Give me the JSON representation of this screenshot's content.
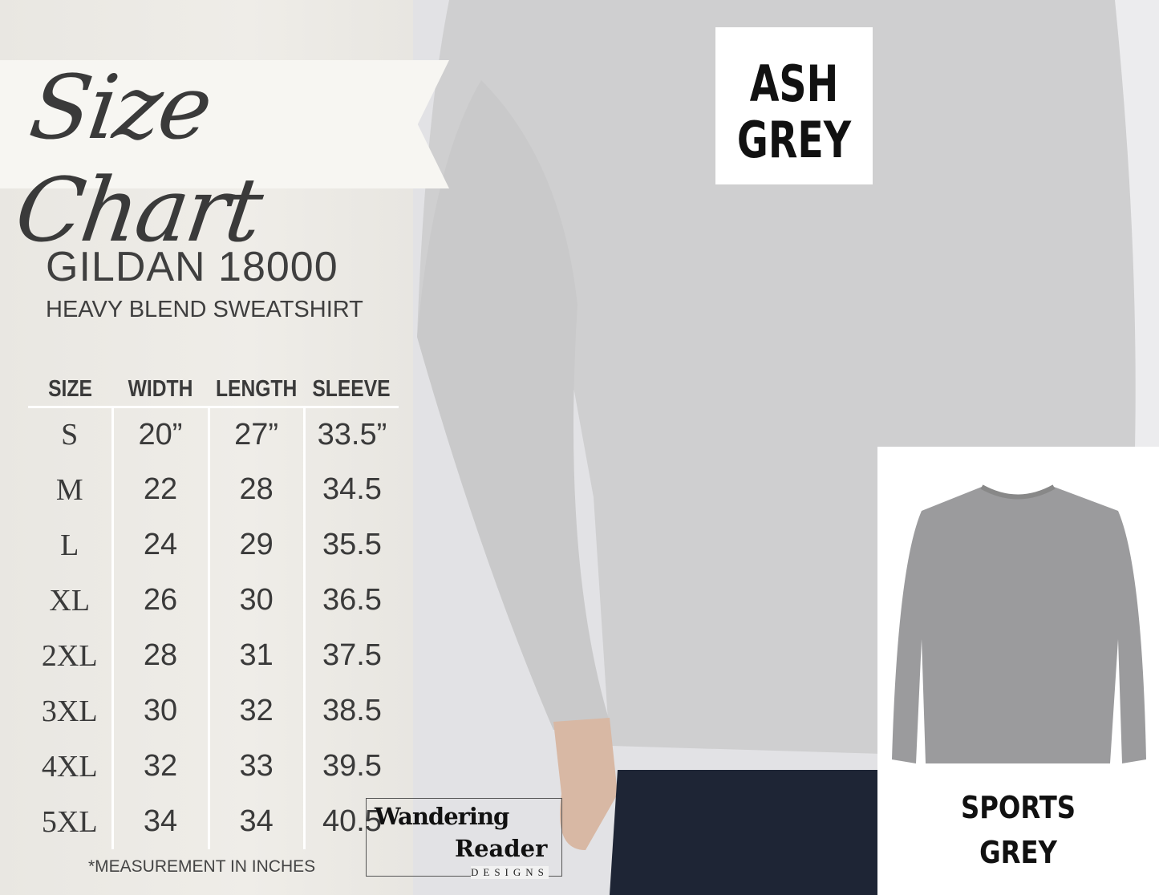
{
  "title": "Size Chart",
  "product": {
    "brand": "GILDAN 18000",
    "subtitle": "HEAVY BLEND SWEATSHIRT"
  },
  "table": {
    "headers": [
      "SIZE",
      "WIDTH",
      "LENGTH",
      "SLEEVE"
    ],
    "rows": [
      [
        "S",
        "20”",
        "27”",
        "33.5”"
      ],
      [
        "M",
        "22",
        "28",
        "34.5"
      ],
      [
        "L",
        "24",
        "29",
        "35.5"
      ],
      [
        "XL",
        "26",
        "30",
        "36.5"
      ],
      [
        "2XL",
        "28",
        "31",
        "37.5"
      ],
      [
        "3XL",
        "30",
        "32",
        "38.5"
      ],
      [
        "4XL",
        "32",
        "33",
        "39.5"
      ],
      [
        "5XL",
        "34",
        "34",
        "40.5"
      ]
    ]
  },
  "note": "*MEASUREMENT IN INCHES",
  "logo": {
    "line1": "Wandering",
    "line2": "Reader",
    "line3": "DESIGNS"
  },
  "ash_label": {
    "line1": "ASH",
    "line2": "GREY"
  },
  "sports_label": {
    "line1": "SPORTS",
    "line2": "GREY"
  },
  "colors": {
    "ash_grey": "#d3d3d3",
    "sports_grey": "#9b9b9d",
    "panel": "#ecebe6",
    "text": "#3a3a3a"
  }
}
